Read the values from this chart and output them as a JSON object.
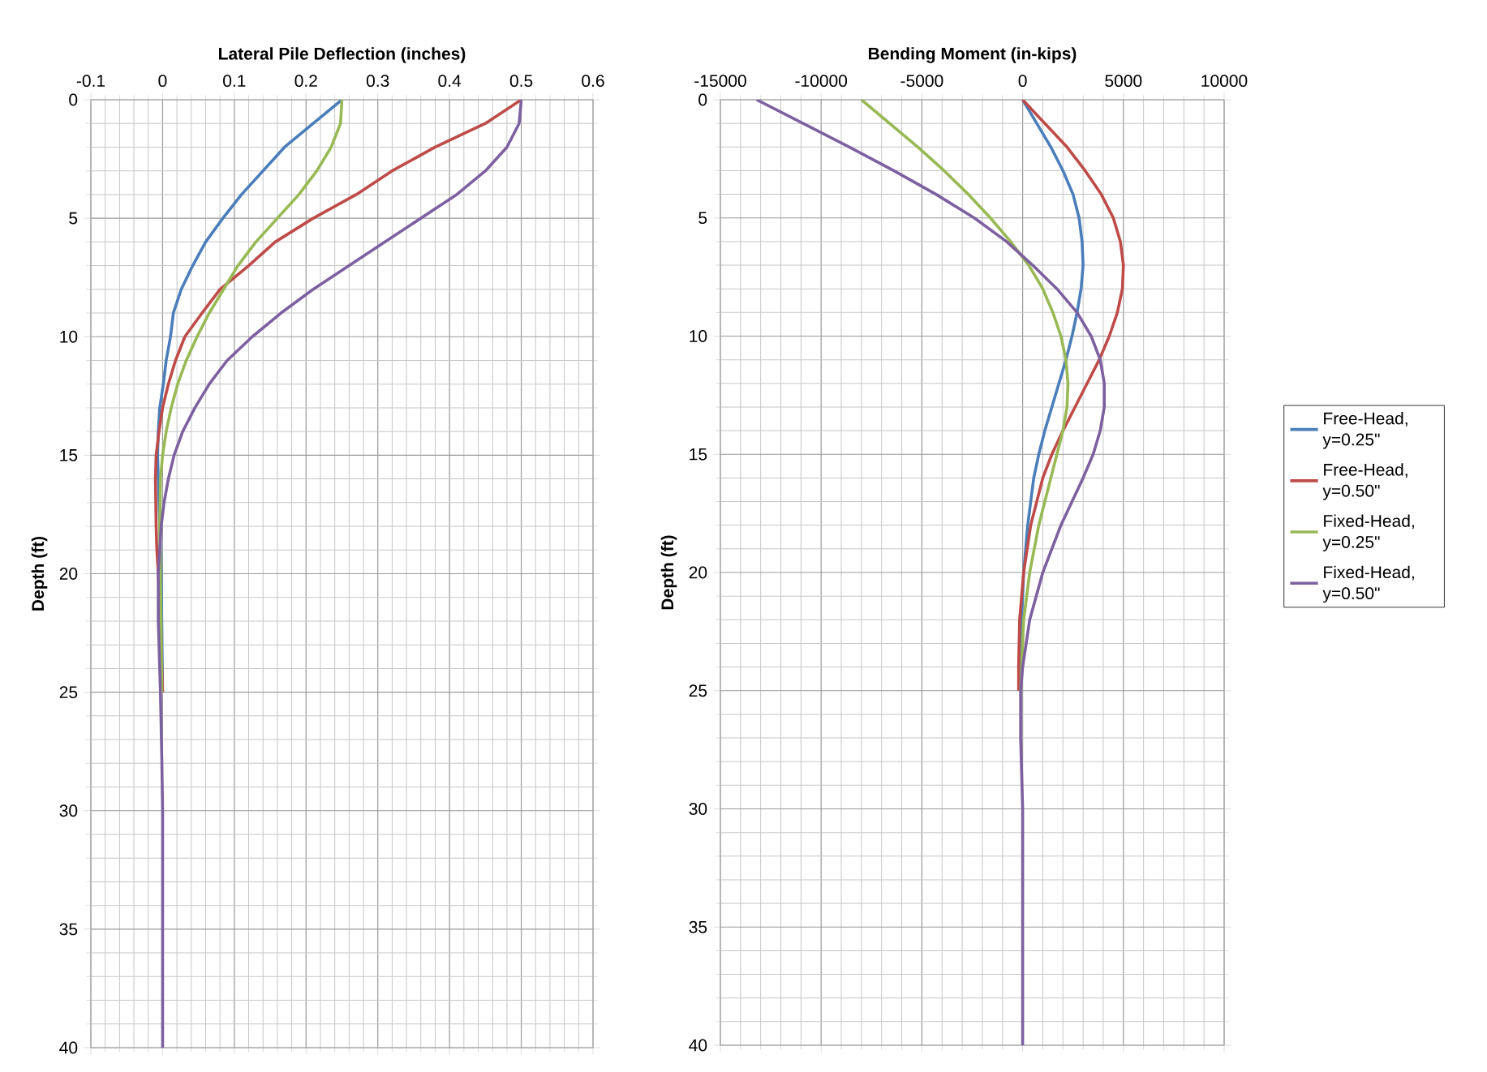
{
  "chart_data": [
    {
      "type": "line",
      "xlabel": "Lateral Pile Deflection (inches)",
      "ylabel": "Depth (ft)",
      "xlim": [
        -0.1,
        0.6
      ],
      "xticks": [
        -0.1,
        0,
        0.1,
        0.2,
        0.3,
        0.4,
        0.5,
        0.6
      ],
      "ylim": [
        40,
        0
      ],
      "yticks": [
        0,
        5,
        10,
        15,
        20,
        25,
        30,
        35,
        40
      ],
      "grid": true,
      "legend": false,
      "series": [
        {
          "color": "#4a7ebb",
          "x": [
            0.25,
            0.21,
            0.17,
            0.14,
            0.11,
            0.084,
            0.06,
            0.042,
            0.026,
            0.015,
            0.011,
            0.005,
            0.001,
            -0.004,
            -0.006,
            -0.007,
            -0.006,
            -0.004,
            -0.002,
            0
          ],
          "values": [
            0,
            1,
            2,
            3,
            4,
            5,
            6,
            7,
            8,
            9,
            10,
            11,
            12,
            13,
            14,
            15,
            16,
            18,
            20,
            25
          ]
        },
        {
          "color": "#be4b48",
          "x": [
            0.5,
            0.45,
            0.38,
            0.32,
            0.27,
            0.21,
            0.157,
            0.12,
            0.08,
            0.055,
            0.031,
            0.018,
            0.008,
            0,
            -0.005,
            -0.009,
            -0.01,
            -0.009,
            -0.008,
            -0.006,
            -0.003,
            0
          ],
          "values": [
            0,
            1,
            2,
            3,
            4,
            5,
            6,
            7,
            8,
            9,
            10,
            11,
            12,
            13,
            14,
            15,
            16,
            18,
            19,
            20,
            22,
            25
          ]
        },
        {
          "color": "#98b954",
          "x": [
            0.25,
            0.248,
            0.235,
            0.215,
            0.19,
            0.16,
            0.13,
            0.105,
            0.085,
            0.065,
            0.048,
            0.033,
            0.021,
            0.012,
            0.005,
            0,
            -0.003,
            -0.004,
            -0.003,
            -0.001
          ],
          "values": [
            0,
            1,
            2,
            3,
            4,
            5,
            6,
            7,
            8,
            9,
            10,
            11,
            12,
            13,
            14,
            15,
            16,
            18,
            20,
            25
          ]
        },
        {
          "color": "#7d60a0",
          "x": [
            0.5,
            0.497,
            0.48,
            0.45,
            0.41,
            0.36,
            0.31,
            0.26,
            0.21,
            0.165,
            0.125,
            0.09,
            0.065,
            0.045,
            0.028,
            0.016,
            0.008,
            0.002,
            -0.002,
            -0.006,
            -0.006,
            -0.003,
            -0.001,
            0,
            0
          ],
          "values": [
            0,
            1,
            2,
            3,
            4,
            5,
            6,
            7,
            8,
            9,
            10,
            11,
            12,
            13,
            14,
            15,
            16,
            17,
            18,
            20,
            22,
            25,
            28,
            30,
            40
          ]
        }
      ]
    },
    {
      "type": "line",
      "xlabel": "Bending Moment (in-kips)",
      "ylabel": "Depth (ft)",
      "xlim": [
        -15000,
        10000
      ],
      "xticks": [
        -15000,
        -10000,
        -5000,
        0,
        5000,
        10000
      ],
      "ylim": [
        40,
        0
      ],
      "yticks": [
        0,
        5,
        10,
        15,
        20,
        25,
        30,
        35,
        40
      ],
      "grid": true,
      "legend": "right",
      "series": [
        {
          "name": "Free-Head, y=0.25\"",
          "color": "#4a7ebb",
          "x": [
            0,
            700,
            1400,
            2000,
            2500,
            2800,
            2950,
            3000,
            2900,
            2700,
            2450,
            2150,
            1800,
            1450,
            1100,
            800,
            550,
            250,
            50,
            -50,
            -100
          ],
          "values": [
            0,
            1,
            2,
            3,
            4,
            5,
            6,
            7,
            8,
            9,
            10,
            11,
            12,
            13,
            14,
            15,
            16,
            18,
            20,
            22,
            25
          ]
        },
        {
          "name": "Free-Head, y=0.50\"",
          "color": "#be4b48",
          "x": [
            0,
            1100,
            2200,
            3100,
            3900,
            4500,
            4850,
            5000,
            4950,
            4700,
            4300,
            3800,
            3200,
            2600,
            2000,
            1450,
            1000,
            400,
            50,
            -150,
            -200,
            -200
          ],
          "values": [
            0,
            1,
            2,
            3,
            4,
            5,
            6,
            7,
            8,
            9,
            10,
            11,
            12,
            13,
            14,
            15,
            16,
            18,
            20,
            22,
            24,
            25
          ]
        },
        {
          "name": "Fixed-Head, y=0.25\"",
          "color": "#98b954",
          "x": [
            -8000,
            -6600,
            -5200,
            -3900,
            -2700,
            -1600,
            -600,
            300,
            1000,
            1500,
            1900,
            2150,
            2250,
            2200,
            2000,
            1700,
            1400,
            800,
            350,
            50,
            -100
          ],
          "values": [
            0,
            1,
            2,
            3,
            4,
            5,
            6,
            7,
            8,
            9,
            10,
            11,
            12,
            13,
            14,
            15,
            16,
            18,
            20,
            22,
            25
          ]
        },
        {
          "name": "Fixed-Head, y=0.50\"",
          "color": "#7d60a0",
          "x": [
            -13200,
            -10900,
            -8600,
            -6400,
            -4300,
            -2400,
            -800,
            500,
            1700,
            2700,
            3400,
            3850,
            4050,
            4050,
            3850,
            3500,
            3000,
            2450,
            1900,
            1000,
            350,
            0,
            -100,
            -100,
            0,
            0
          ],
          "values": [
            0,
            1,
            2,
            3,
            4,
            5,
            6,
            7,
            8,
            9,
            10,
            11,
            12,
            13,
            14,
            15,
            16,
            17,
            18,
            20,
            22,
            24,
            25,
            27,
            30,
            40
          ]
        }
      ]
    }
  ]
}
